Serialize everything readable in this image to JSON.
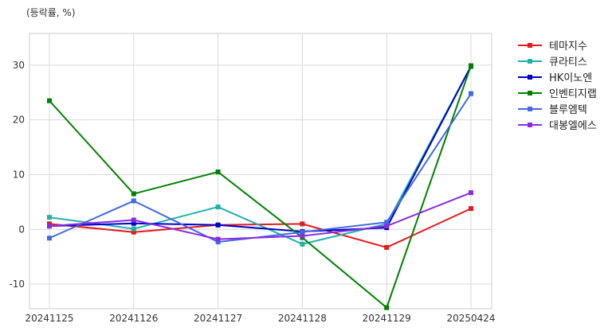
{
  "chart_data": {
    "type": "line",
    "ylabel": "(등락률, %)",
    "x": [
      "20241125",
      "20241126",
      "20241127",
      "20241128",
      "20241129",
      "20250424"
    ],
    "yticks": [
      -10,
      0,
      10,
      20,
      30
    ],
    "ylim": [
      -14.5,
      35.8
    ],
    "grid": true,
    "legend_position": "right",
    "series": [
      {
        "name": "테마지수",
        "color": "#e31a1c",
        "values": [
          1.0,
          -0.5,
          0.8,
          1.0,
          -3.3,
          3.8
        ]
      },
      {
        "name": "큐라티스",
        "color": "#20b2aa",
        "values": [
          2.2,
          0.1,
          4.1,
          -2.7,
          1.0,
          29.8
        ]
      },
      {
        "name": "HK이노엔",
        "color": "#0000cd",
        "values": [
          0.6,
          1.1,
          0.8,
          -0.4,
          0.3,
          29.8
        ]
      },
      {
        "name": "인벤티지랩",
        "color": "#008000",
        "values": [
          23.5,
          6.5,
          10.5,
          -1.5,
          -14.3,
          29.9
        ]
      },
      {
        "name": "블루엠텍",
        "color": "#4169e1",
        "values": [
          -1.6,
          5.2,
          -2.3,
          -0.5,
          1.3,
          24.8
        ]
      },
      {
        "name": "대봉엘에스",
        "color": "#8a2be2",
        "values": [
          0.6,
          1.7,
          -1.8,
          -1.2,
          0.6,
          6.7
        ]
      }
    ]
  }
}
